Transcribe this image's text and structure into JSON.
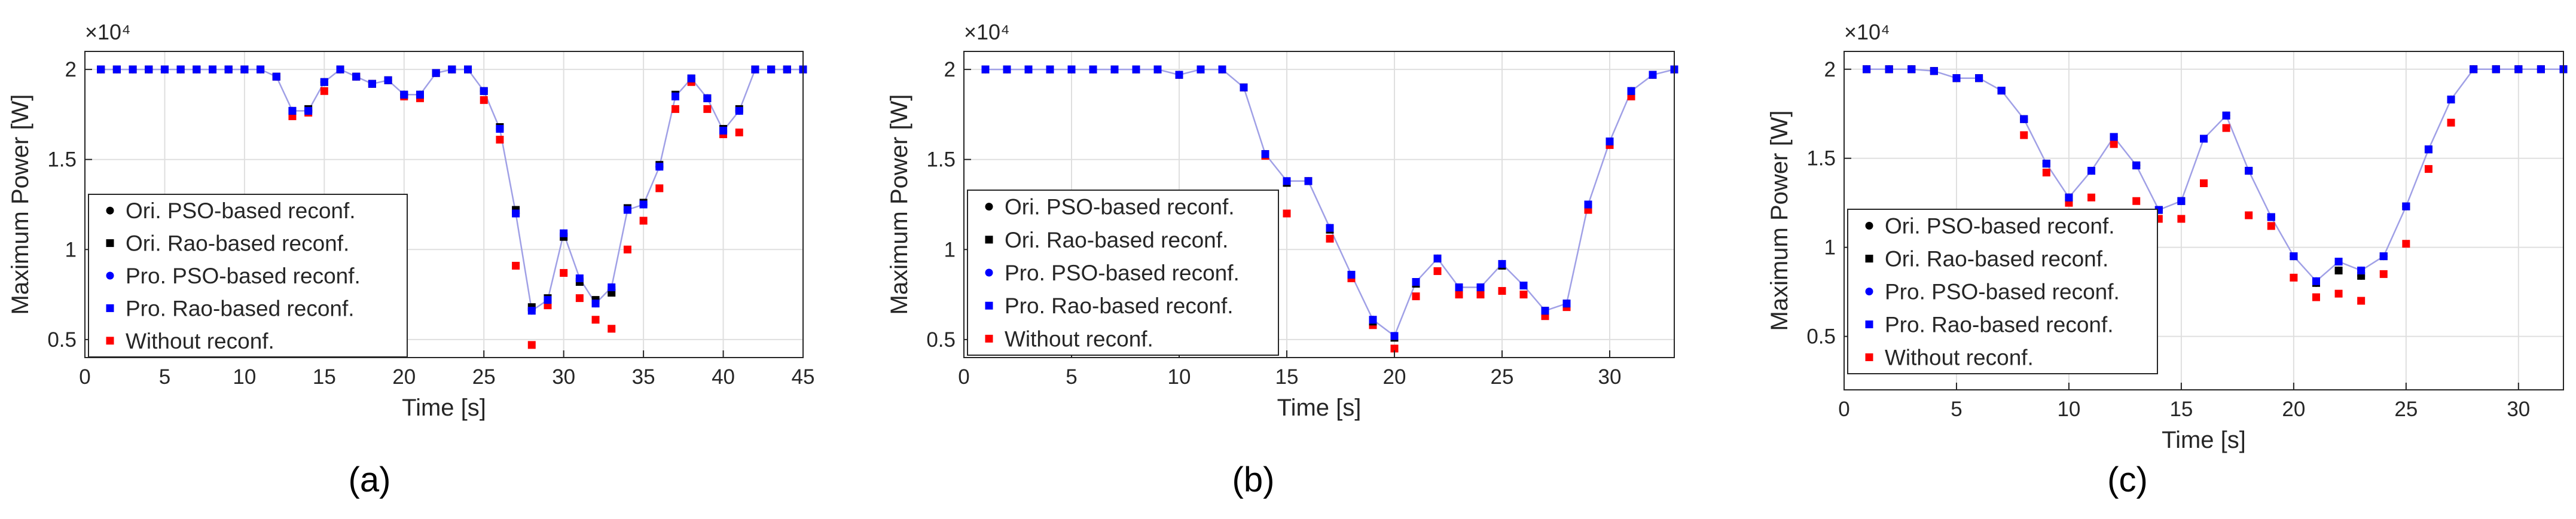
{
  "figure": {
    "background": "#ffffff"
  },
  "colors": {
    "pso_ori": "#000000",
    "rao_ori": "#000000",
    "pso_pro": "#0000ff",
    "rao_pro": "#0000ff",
    "without": "#ff0000",
    "line": "#a0a0e6",
    "grid": "#dfdfdf",
    "axis": "#262626"
  },
  "chart_data": [
    {
      "type": "scatter",
      "caption": "(a)",
      "xlabel": "Time [s]",
      "ylabel": "Maximum Power [W]",
      "y_exponent": "×10⁴",
      "xlim": [
        0,
        45
      ],
      "ylim": [
        0.4,
        2.1
      ],
      "xticks": [
        0,
        5,
        10,
        15,
        20,
        25,
        30,
        35,
        40,
        45
      ],
      "yticks": [
        0.5,
        1,
        1.5,
        2
      ],
      "ytick_labels": [
        "0.5",
        "1",
        "1.5",
        "2"
      ],
      "grid": true,
      "legend_position": "bottom-left",
      "legend": [
        "Ori. PSO-based reconf.",
        "Ori. Rao-based reconf.",
        "Pro. PSO-based reconf.",
        "Pro. Rao-based reconf.",
        "Without reconf."
      ],
      "x": [
        1,
        2,
        3,
        4,
        5,
        6,
        7,
        8,
        9,
        10,
        11,
        12,
        13,
        14,
        15,
        16,
        17,
        18,
        19,
        20,
        21,
        22,
        23,
        24,
        25,
        26,
        27,
        28,
        29,
        30,
        31,
        32,
        33,
        34,
        35,
        36,
        37,
        38,
        39,
        40,
        41,
        42,
        43,
        44,
        45
      ],
      "series": [
        {
          "name": "Ori. PSO-based reconf.",
          "marker": "circle",
          "values": [
            2,
            2,
            2,
            2,
            2,
            2,
            2,
            2,
            2,
            2,
            2,
            1.96,
            1.77,
            1.77,
            1.93,
            2,
            1.96,
            1.92,
            1.94,
            1.86,
            1.86,
            1.98,
            2,
            2,
            1.88,
            1.67,
            1.2,
            0.67,
            0.72,
            1.08,
            0.83,
            0.71,
            0.78,
            1.22,
            1.25,
            1.46,
            1.85,
            1.95,
            1.84,
            1.66,
            1.77,
            2,
            2,
            2,
            2
          ]
        },
        {
          "name": "Ori. Rao-based reconf.",
          "marker": "square",
          "values": [
            2,
            2,
            2,
            2,
            2,
            2,
            2,
            2,
            2,
            2,
            2,
            1.96,
            1.77,
            1.78,
            1.93,
            2,
            1.96,
            1.92,
            1.94,
            1.86,
            1.86,
            1.98,
            2,
            2,
            1.88,
            1.68,
            1.22,
            0.68,
            0.73,
            1.07,
            0.82,
            0.72,
            0.76,
            1.23,
            1.26,
            1.47,
            1.86,
            1.95,
            1.84,
            1.67,
            1.78,
            2,
            2,
            2,
            2
          ]
        },
        {
          "name": "Pro. PSO-based reconf.",
          "marker": "circle",
          "values": [
            2,
            2,
            2,
            2,
            2,
            2,
            2,
            2,
            2,
            2,
            2,
            1.96,
            1.77,
            1.77,
            1.93,
            2,
            1.96,
            1.92,
            1.94,
            1.86,
            1.86,
            1.98,
            2,
            2,
            1.88,
            1.67,
            1.2,
            0.66,
            0.72,
            1.09,
            0.84,
            0.7,
            0.79,
            1.22,
            1.25,
            1.46,
            1.85,
            1.95,
            1.84,
            1.66,
            1.77,
            2,
            2,
            2,
            2
          ]
        },
        {
          "name": "Pro. Rao-based reconf.",
          "marker": "square",
          "values": [
            2,
            2,
            2,
            2,
            2,
            2,
            2,
            2,
            2,
            2,
            2,
            1.96,
            1.77,
            1.77,
            1.93,
            2,
            1.96,
            1.92,
            1.94,
            1.86,
            1.86,
            1.98,
            2,
            2,
            1.88,
            1.67,
            1.2,
            0.66,
            0.72,
            1.09,
            0.84,
            0.7,
            0.79,
            1.22,
            1.25,
            1.46,
            1.85,
            1.95,
            1.84,
            1.66,
            1.77,
            2,
            2,
            2,
            2
          ]
        },
        {
          "name": "Without reconf.",
          "marker": "square",
          "values": [
            2,
            2,
            2,
            2,
            2,
            2,
            2,
            2,
            2,
            2,
            2,
            1.96,
            1.74,
            1.76,
            1.88,
            2,
            1.96,
            1.92,
            1.94,
            1.85,
            1.84,
            1.98,
            2,
            2,
            1.83,
            1.61,
            0.91,
            0.47,
            0.69,
            0.87,
            0.73,
            0.61,
            0.56,
            1,
            1.16,
            1.34,
            1.78,
            1.93,
            1.78,
            1.64,
            1.65,
            2,
            2,
            2,
            2
          ]
        }
      ]
    },
    {
      "type": "scatter",
      "caption": "(b)",
      "xlabel": "Time [s]",
      "ylabel": "Maximum Power [W]",
      "y_exponent": "×10⁴",
      "xlim": [
        0,
        33
      ],
      "ylim": [
        0.4,
        2.1
      ],
      "xticks": [
        0,
        5,
        10,
        15,
        20,
        25,
        30
      ],
      "yticks": [
        0.5,
        1,
        1.5,
        2
      ],
      "ytick_labels": [
        "0.5",
        "1",
        "1.5",
        "2"
      ],
      "grid": true,
      "legend_position": "bottom-left",
      "legend": [
        "Ori. PSO-based reconf.",
        "Ori. Rao-based reconf.",
        "Pro. PSO-based reconf.",
        "Pro. Rao-based reconf.",
        "Without reconf."
      ],
      "x": [
        1,
        2,
        3,
        4,
        5,
        6,
        7,
        8,
        9,
        10,
        11,
        12,
        13,
        14,
        15,
        16,
        17,
        18,
        19,
        20,
        21,
        22,
        23,
        24,
        25,
        26,
        27,
        28,
        29,
        30,
        31,
        32,
        33
      ],
      "series": [
        {
          "name": "Ori. PSO-based reconf.",
          "marker": "circle",
          "values": [
            2,
            2,
            2,
            2,
            2,
            2,
            2,
            2,
            2,
            1.97,
            2,
            2,
            1.9,
            1.53,
            1.38,
            1.38,
            1.12,
            0.86,
            0.61,
            0.52,
            0.82,
            0.95,
            0.79,
            0.79,
            0.92,
            0.8,
            0.66,
            0.7,
            1.25,
            1.6,
            1.88,
            1.97,
            2
          ]
        },
        {
          "name": "Ori. Rao-based reconf.",
          "marker": "square",
          "values": [
            2,
            2,
            2,
            2,
            2,
            2,
            2,
            2,
            2,
            1.97,
            2,
            2,
            1.9,
            1.53,
            1.37,
            1.38,
            1.11,
            0.86,
            0.6,
            0.51,
            0.81,
            0.95,
            0.79,
            0.79,
            0.91,
            0.8,
            0.66,
            0.7,
            1.25,
            1.6,
            1.88,
            1.97,
            2
          ]
        },
        {
          "name": "Pro. PSO-based reconf.",
          "marker": "circle",
          "values": [
            2,
            2,
            2,
            2,
            2,
            2,
            2,
            2,
            2,
            1.97,
            2,
            2,
            1.9,
            1.53,
            1.38,
            1.38,
            1.12,
            0.86,
            0.61,
            0.52,
            0.82,
            0.95,
            0.79,
            0.79,
            0.92,
            0.8,
            0.66,
            0.7,
            1.25,
            1.6,
            1.88,
            1.97,
            2
          ]
        },
        {
          "name": "Pro. Rao-based reconf.",
          "marker": "square",
          "values": [
            2,
            2,
            2,
            2,
            2,
            2,
            2,
            2,
            2,
            1.97,
            2,
            2,
            1.9,
            1.53,
            1.38,
            1.38,
            1.12,
            0.86,
            0.61,
            0.52,
            0.82,
            0.95,
            0.79,
            0.79,
            0.92,
            0.8,
            0.66,
            0.7,
            1.25,
            1.6,
            1.88,
            1.97,
            2
          ]
        },
        {
          "name": "Without reconf.",
          "marker": "square",
          "values": [
            2,
            2,
            2,
            2,
            2,
            2,
            2,
            2,
            2,
            1.97,
            2,
            2,
            1.9,
            1.52,
            1.2,
            1.38,
            1.06,
            0.84,
            0.58,
            0.45,
            0.74,
            0.88,
            0.75,
            0.75,
            0.77,
            0.75,
            0.63,
            0.68,
            1.22,
            1.58,
            1.85,
            1.97,
            2
          ]
        }
      ]
    },
    {
      "type": "scatter",
      "caption": "(c)",
      "xlabel": "Time [s]",
      "ylabel": "Maximum Power [W]",
      "y_exponent": "×10⁴",
      "xlim": [
        0,
        32
      ],
      "ylim": [
        0.2,
        2.1
      ],
      "xticks": [
        0,
        5,
        10,
        15,
        20,
        25,
        30
      ],
      "yticks": [
        0.5,
        1,
        1.5,
        2
      ],
      "ytick_labels": [
        "0.5",
        "1",
        "1.5",
        "2"
      ],
      "grid": true,
      "legend_position": "bottom-left",
      "legend": [
        "Ori. PSO-based reconf.",
        "Ori. Rao-based reconf.",
        "Pro. PSO-based reconf.",
        "Pro. Rao-based reconf.",
        "Without reconf."
      ],
      "x": [
        1,
        2,
        3,
        4,
        5,
        6,
        7,
        8,
        9,
        10,
        11,
        12,
        13,
        14,
        15,
        16,
        17,
        18,
        19,
        20,
        21,
        22,
        23,
        24,
        25,
        26,
        27,
        28,
        29,
        30,
        31,
        32
      ],
      "series": [
        {
          "name": "Ori. PSO-based reconf.",
          "marker": "circle",
          "values": [
            2,
            2,
            2,
            1.99,
            1.95,
            1.95,
            1.88,
            1.72,
            1.47,
            1.28,
            1.43,
            1.62,
            1.46,
            1.21,
            1.26,
            1.61,
            1.74,
            1.43,
            1.17,
            0.95,
            0.8,
            0.87,
            0.84,
            0.95,
            1.23,
            1.55,
            1.83,
            2,
            2,
            2,
            2,
            2
          ]
        },
        {
          "name": "Ori. Rao-based reconf.",
          "marker": "square",
          "values": [
            2,
            2,
            2,
            1.99,
            1.95,
            1.95,
            1.88,
            1.72,
            1.47,
            1.28,
            1.43,
            1.62,
            1.46,
            1.21,
            1.26,
            1.61,
            1.74,
            1.43,
            1.17,
            0.95,
            0.8,
            0.87,
            0.84,
            0.95,
            1.23,
            1.55,
            1.83,
            2,
            2,
            2,
            2,
            2
          ]
        },
        {
          "name": "Pro. PSO-based reconf.",
          "marker": "circle",
          "values": [
            2,
            2,
            2,
            1.99,
            1.95,
            1.95,
            1.88,
            1.72,
            1.47,
            1.28,
            1.43,
            1.62,
            1.46,
            1.21,
            1.26,
            1.61,
            1.74,
            1.43,
            1.17,
            0.95,
            0.81,
            0.92,
            0.87,
            0.95,
            1.23,
            1.55,
            1.83,
            2,
            2,
            2,
            2,
            2
          ]
        },
        {
          "name": "Pro. Rao-based reconf.",
          "marker": "square",
          "values": [
            2,
            2,
            2,
            1.99,
            1.95,
            1.95,
            1.88,
            1.72,
            1.47,
            1.28,
            1.43,
            1.62,
            1.46,
            1.21,
            1.26,
            1.61,
            1.74,
            1.43,
            1.17,
            0.95,
            0.81,
            0.92,
            0.87,
            0.95,
            1.23,
            1.55,
            1.83,
            2,
            2,
            2,
            2,
            2
          ]
        },
        {
          "name": "Without reconf.",
          "marker": "square",
          "values": [
            2,
            2,
            2,
            1.99,
            1.95,
            1.95,
            1.88,
            1.63,
            1.42,
            1.25,
            1.28,
            1.58,
            1.26,
            1.16,
            1.16,
            1.36,
            1.67,
            1.18,
            1.12,
            0.83,
            0.72,
            0.74,
            0.7,
            0.85,
            1.02,
            1.44,
            1.7,
            2,
            2,
            2,
            2,
            2
          ]
        }
      ]
    }
  ]
}
